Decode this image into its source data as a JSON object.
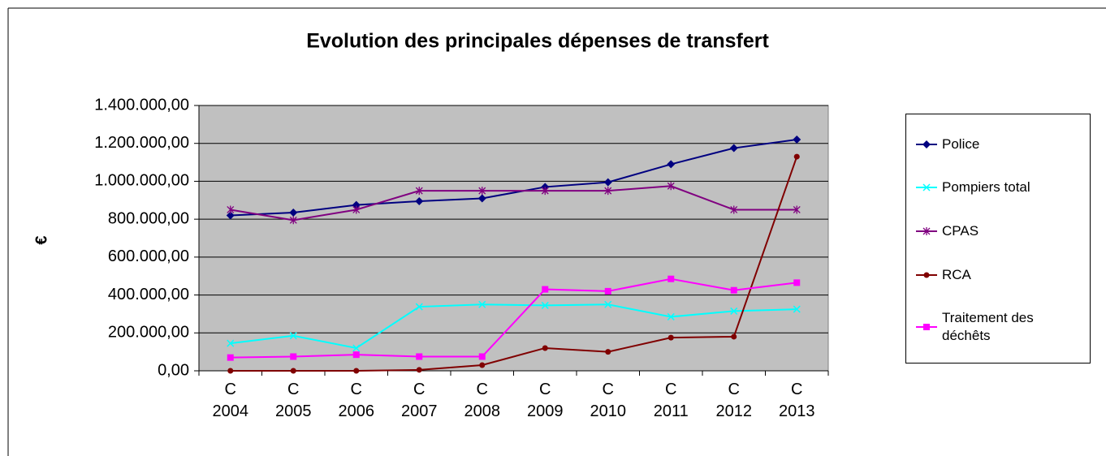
{
  "chart_data": {
    "type": "line",
    "title": "Evolution des principales dépenses de transfert",
    "y_label": "€",
    "categories": [
      "C 2004",
      "C 2005",
      "C 2006",
      "C 2007",
      "C 2008",
      "C 2009",
      "C 2010",
      "C 2011",
      "C 2012",
      "C 2013"
    ],
    "ylim": [
      0,
      1400000
    ],
    "yticks": [
      {
        "value": 0,
        "label": "0,00"
      },
      {
        "value": 200000,
        "label": "200.000,00"
      },
      {
        "value": 400000,
        "label": "400.000,00"
      },
      {
        "value": 600000,
        "label": "600.000,00"
      },
      {
        "value": 800000,
        "label": "800.000,00"
      },
      {
        "value": 1000000,
        "label": "1.000.000,00"
      },
      {
        "value": 1200000,
        "label": "1.200.000,00"
      },
      {
        "value": 1400000,
        "label": "1.400.000,00"
      }
    ],
    "grid": true,
    "legend": "right",
    "series": [
      {
        "name": "Police",
        "color": "#000080",
        "marker": "diamond",
        "values": [
          820000,
          835000,
          875000,
          895000,
          910000,
          970000,
          995000,
          1090000,
          1175000,
          1220000
        ]
      },
      {
        "name": "Pompiers total",
        "color": "#00ffff",
        "marker": "x",
        "values": [
          145000,
          185000,
          120000,
          338000,
          350000,
          345000,
          350000,
          285000,
          315000,
          325000
        ]
      },
      {
        "name": "CPAS",
        "color": "#800080",
        "marker": "star",
        "values": [
          850000,
          795000,
          850000,
          950000,
          950000,
          950000,
          950000,
          975000,
          850000,
          850000
        ]
      },
      {
        "name": "RCA",
        "color": "#800000",
        "marker": "circle",
        "values": [
          0,
          0,
          0,
          5000,
          30000,
          120000,
          100000,
          175000,
          180000,
          1130000
        ]
      },
      {
        "name": "Traitement des déchêts",
        "color": "#ff00ff",
        "marker": "square",
        "values": [
          70000,
          75000,
          85000,
          75000,
          75000,
          430000,
          420000,
          485000,
          425000,
          465000
        ]
      }
    ]
  }
}
